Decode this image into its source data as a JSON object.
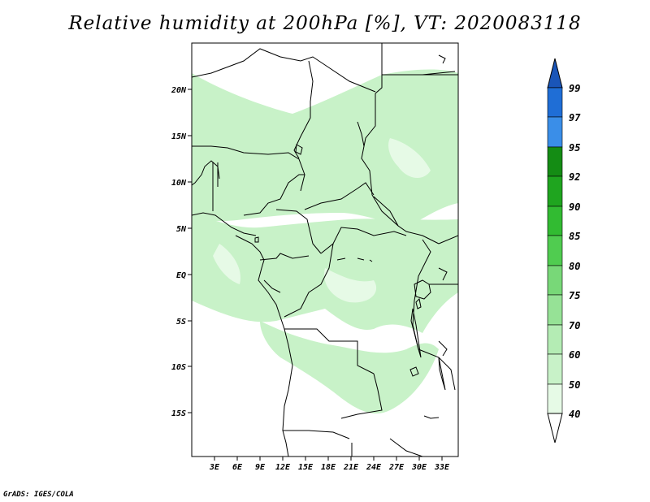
{
  "title": "Relative humidity at 200hPa [%], VT: 2020083118",
  "credit": "GrADS: IGES/COLA",
  "map": {
    "latitude_labels": [
      "20N",
      "15N",
      "10N",
      "5N",
      "EQ",
      "5S",
      "10S",
      "15S"
    ],
    "longitude_labels": [
      "3E",
      "6E",
      "9E",
      "12E",
      "15E",
      "18E",
      "21E",
      "24E",
      "27E",
      "30E",
      "33E"
    ]
  },
  "colorbar": {
    "levels": [
      "40",
      "50",
      "60",
      "70",
      "75",
      "80",
      "85",
      "90",
      "92",
      "95",
      "97",
      "99"
    ],
    "colors": {
      "c40": "#e6fae6",
      "c50": "#c8f2c8",
      "c60": "#b4ecb4",
      "c70": "#96e296",
      "c75": "#78d878",
      "c80": "#50cc50",
      "c85": "#32bb32",
      "c90": "#1fa51f",
      "c92": "#148c14",
      "c95": "#3a8ee8",
      "c97": "#1f6ed6",
      "c99": "#1a55b8"
    }
  }
}
